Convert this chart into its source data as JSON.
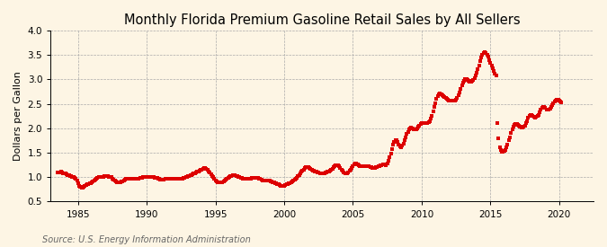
{
  "title": "Monthly Florida Premium Gasoline Retail Sales by All Sellers",
  "ylabel": "Dollars per Gallon",
  "source": "Source: U.S. Energy Information Administration",
  "xlim": [
    1983.0,
    2022.5
  ],
  "ylim": [
    0.5,
    4.0
  ],
  "yticks": [
    0.5,
    1.0,
    1.5,
    2.0,
    2.5,
    3.0,
    3.5,
    4.0
  ],
  "xticks": [
    1985,
    1990,
    1995,
    2000,
    2005,
    2010,
    2015,
    2020
  ],
  "dot_color": "#dd0000",
  "background_color": "#fdf5e4",
  "grid_color": "#aaaaaa",
  "title_fontsize": 10.5,
  "label_fontsize": 8,
  "tick_fontsize": 7.5,
  "source_fontsize": 7,
  "prices": [
    1.09,
    1.09,
    1.1,
    1.11,
    1.1,
    1.08,
    1.07,
    1.07,
    1.06,
    1.05,
    1.04,
    1.03,
    1.02,
    1.01,
    1.0,
    0.99,
    0.96,
    0.94,
    0.88,
    0.83,
    0.8,
    0.79,
    0.79,
    0.8,
    0.82,
    0.84,
    0.85,
    0.86,
    0.87,
    0.88,
    0.89,
    0.91,
    0.93,
    0.95,
    0.97,
    0.99,
    1.0,
    1.0,
    1.0,
    1.0,
    1.01,
    1.02,
    1.02,
    1.02,
    1.02,
    1.01,
    1.0,
    1.0,
    0.97,
    0.95,
    0.93,
    0.91,
    0.9,
    0.89,
    0.89,
    0.9,
    0.91,
    0.92,
    0.94,
    0.95,
    0.96,
    0.96,
    0.97,
    0.97,
    0.97,
    0.97,
    0.97,
    0.96,
    0.96,
    0.96,
    0.97,
    0.97,
    0.98,
    0.98,
    0.99,
    1.0,
    1.0,
    1.01,
    1.01,
    1.01,
    1.01,
    1.01,
    1.0,
    1.0,
    1.0,
    0.99,
    0.99,
    0.98,
    0.97,
    0.96,
    0.95,
    0.95,
    0.95,
    0.95,
    0.96,
    0.96,
    0.97,
    0.97,
    0.97,
    0.97,
    0.97,
    0.96,
    0.96,
    0.96,
    0.96,
    0.96,
    0.96,
    0.96,
    0.96,
    0.97,
    0.98,
    0.99,
    1.0,
    1.01,
    1.02,
    1.03,
    1.04,
    1.05,
    1.06,
    1.07,
    1.08,
    1.1,
    1.11,
    1.12,
    1.13,
    1.15,
    1.16,
    1.17,
    1.18,
    1.18,
    1.17,
    1.15,
    1.12,
    1.09,
    1.06,
    1.03,
    1.0,
    0.97,
    0.94,
    0.92,
    0.9,
    0.89,
    0.89,
    0.89,
    0.9,
    0.91,
    0.93,
    0.95,
    0.97,
    0.99,
    1.01,
    1.02,
    1.03,
    1.04,
    1.04,
    1.04,
    1.03,
    1.02,
    1.01,
    1.0,
    0.99,
    0.98,
    0.97,
    0.96,
    0.96,
    0.96,
    0.96,
    0.97,
    0.97,
    0.97,
    0.98,
    0.98,
    0.98,
    0.98,
    0.98,
    0.98,
    0.97,
    0.96,
    0.95,
    0.94,
    0.93,
    0.93,
    0.93,
    0.93,
    0.93,
    0.93,
    0.92,
    0.91,
    0.9,
    0.89,
    0.88,
    0.87,
    0.86,
    0.85,
    0.84,
    0.83,
    0.83,
    0.83,
    0.83,
    0.84,
    0.85,
    0.86,
    0.87,
    0.88,
    0.89,
    0.91,
    0.93,
    0.95,
    0.97,
    0.99,
    1.02,
    1.05,
    1.08,
    1.11,
    1.13,
    1.15,
    1.18,
    1.2,
    1.21,
    1.2,
    1.19,
    1.17,
    1.16,
    1.14,
    1.13,
    1.12,
    1.11,
    1.1,
    1.09,
    1.08,
    1.07,
    1.07,
    1.07,
    1.08,
    1.09,
    1.1,
    1.11,
    1.12,
    1.14,
    1.15,
    1.17,
    1.2,
    1.22,
    1.24,
    1.25,
    1.24,
    1.22,
    1.19,
    1.16,
    1.13,
    1.1,
    1.08,
    1.07,
    1.08,
    1.1,
    1.13,
    1.16,
    1.19,
    1.23,
    1.26,
    1.28,
    1.28,
    1.27,
    1.25,
    1.23,
    1.22,
    1.22,
    1.22,
    1.22,
    1.22,
    1.22,
    1.22,
    1.22,
    1.21,
    1.2,
    1.19,
    1.19,
    1.19,
    1.2,
    1.21,
    1.22,
    1.23,
    1.24,
    1.25,
    1.26,
    1.26,
    1.26,
    1.25,
    1.28,
    1.33,
    1.4,
    1.49,
    1.58,
    1.66,
    1.72,
    1.76,
    1.76,
    1.72,
    1.67,
    1.63,
    1.62,
    1.64,
    1.69,
    1.75,
    1.82,
    1.88,
    1.93,
    1.97,
    2.0,
    2.01,
    2.0,
    1.98,
    1.97,
    1.98,
    2.0,
    2.03,
    2.06,
    2.08,
    2.1,
    2.11,
    2.11,
    2.1,
    2.1,
    2.1,
    2.12,
    2.15,
    2.2,
    2.26,
    2.34,
    2.43,
    2.52,
    2.6,
    2.66,
    2.7,
    2.71,
    2.7,
    2.68,
    2.66,
    2.64,
    2.62,
    2.6,
    2.58,
    2.57,
    2.56,
    2.56,
    2.56,
    2.56,
    2.57,
    2.59,
    2.62,
    2.67,
    2.73,
    2.8,
    2.87,
    2.93,
    2.97,
    3.0,
    3.0,
    2.99,
    2.97,
    2.96,
    2.96,
    2.97,
    2.99,
    3.03,
    3.08,
    3.14,
    3.21,
    3.29,
    3.37,
    3.45,
    3.5,
    3.54,
    3.55,
    3.54,
    3.51,
    3.46,
    3.4,
    3.34,
    3.28,
    3.22,
    3.17,
    3.12,
    3.08,
    2.1,
    1.8,
    1.62,
    1.55,
    1.52,
    1.52,
    1.53,
    1.56,
    1.61,
    1.67,
    1.75,
    1.82,
    1.9,
    1.97,
    2.03,
    2.07,
    2.09,
    2.09,
    2.07,
    2.05,
    2.03,
    2.02,
    2.02,
    2.03,
    2.06,
    2.1,
    2.15,
    2.21,
    2.25,
    2.27,
    2.27,
    2.25,
    2.23,
    2.22,
    2.23,
    2.25,
    2.28,
    2.33,
    2.38,
    2.41,
    2.43,
    2.43,
    2.41,
    2.39,
    2.38,
    2.38,
    2.4,
    2.43,
    2.47,
    2.51,
    2.54,
    2.57,
    2.58,
    2.58,
    2.56,
    2.54,
    2.53
  ],
  "start_year": 1983,
  "start_month": 7
}
